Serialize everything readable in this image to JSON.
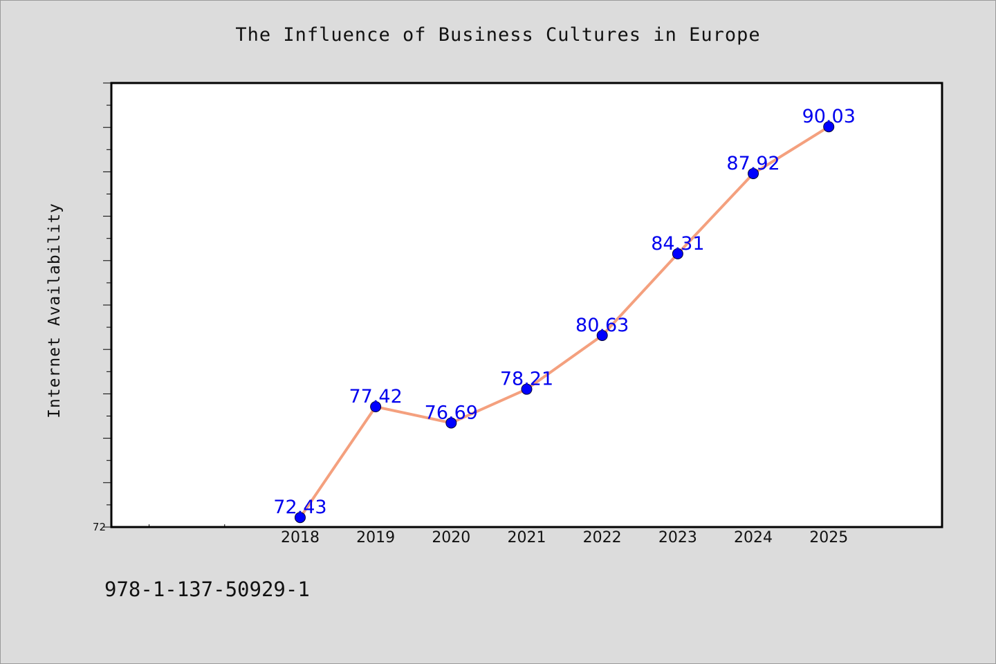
{
  "chart_data": {
    "type": "line",
    "title": "The Influence of Business Cultures in Europe",
    "xlabel": "",
    "ylabel": "Internet Availability",
    "x": [
      "2018",
      "2019",
      "2020",
      "2021",
      "2022",
      "2023",
      "2024",
      "2025"
    ],
    "series": [
      {
        "values": [
          72.43,
          77.42,
          76.69,
          78.21,
          80.63,
          84.31,
          87.92,
          90.03
        ]
      }
    ],
    "x_range": [
      2015.5,
      2026.5
    ],
    "ylim": [
      72,
      92
    ],
    "y_tick_labels": [
      "72"
    ],
    "line_color": "#f4a07e",
    "marker_color": "#0000ff",
    "data_label_color": "#0000ee",
    "grid": false,
    "legend": "none"
  },
  "footer_text": "978-1-137-50929-1"
}
